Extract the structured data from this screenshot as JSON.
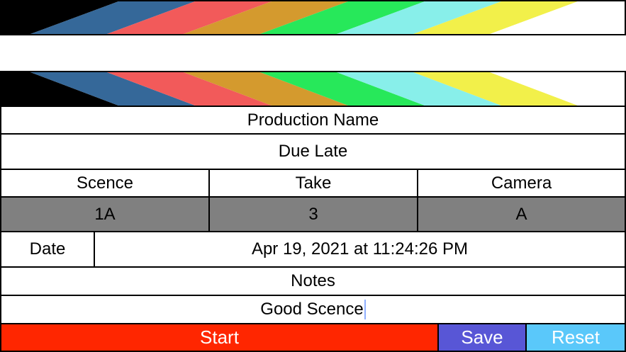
{
  "clapper": {
    "stripe_colors": [
      "#000000",
      "#356899",
      "#f25a5a",
      "#d49a2e",
      "#27e85a",
      "#88efea",
      "#f2f04a",
      "#ffffff"
    ]
  },
  "production": {
    "label": "Production Name",
    "value": "Due Late"
  },
  "columns": [
    {
      "label": "Scence",
      "value": "1A"
    },
    {
      "label": "Take",
      "value": "3"
    },
    {
      "label": "Camera",
      "value": "A"
    }
  ],
  "date": {
    "label": "Date",
    "value": "Apr 19, 2021 at 11:24:26 PM"
  },
  "notes": {
    "label": "Notes",
    "value": "Good Scence"
  },
  "buttons": {
    "start": {
      "label": "Start",
      "color": "#ff2600"
    },
    "save": {
      "label": "Save",
      "color": "#5856d6"
    },
    "reset": {
      "label": "Reset",
      "color": "#5ac8fa"
    }
  }
}
